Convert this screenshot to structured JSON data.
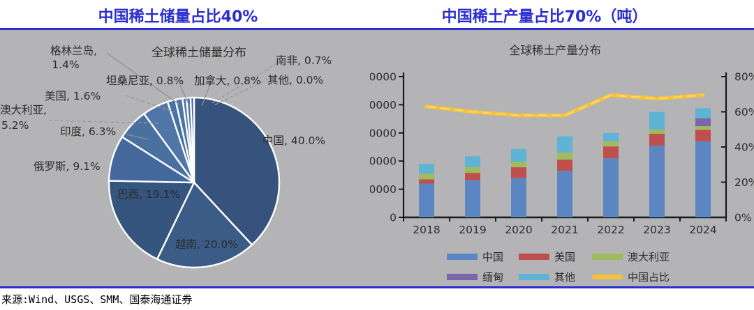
{
  "page": {
    "left_title": "中国稀土储量占比40%",
    "right_title": "中国稀土产量占比70%（吨）",
    "source": "来源:Wind、USGS、SMM、国泰海通证券",
    "accent_blue": "#2a2ed0",
    "panel_bg": "#b4b4b6"
  },
  "chart_data": [
    {
      "type": "pie",
      "title": "全球稀土储量分布",
      "unit": "%",
      "direction": "clockwise",
      "start_angle_deg": 0,
      "labels": [
        "中国",
        "越南",
        "巴西",
        "俄罗斯",
        "印度",
        "澳大利亚",
        "美国",
        "格林兰岛",
        "坦桑尼亚",
        "加拿大",
        "南非",
        "其他"
      ],
      "values": [
        40.0,
        20.0,
        19.1,
        9.1,
        6.3,
        5.2,
        1.6,
        1.4,
        0.8,
        0.8,
        0.7,
        0.0
      ],
      "colors": [
        "#35537c",
        "#3a5c86",
        "#35547e",
        "#44689b",
        "#49709f",
        "#4f76a7",
        "#4a71a3",
        "#4d74a6",
        "#5076a8",
        "#4a71a3",
        "#4d74a6",
        "#4a71a3"
      ],
      "callouts": [
        "格林兰岛,",
        "1.4%",
        "坦桑尼亚, 0.8%",
        "美国, 1.6%",
        "澳大利亚,",
        "5.2%",
        "印度, 6.3%",
        "俄罗斯, 9.1%",
        "巴西, 19.1%",
        "越南, 20.0%",
        "中国, 40.0%",
        "南非, 0.7%",
        "加拿大, 0.8%",
        "其他, 0.0%"
      ]
    },
    {
      "type": "bar",
      "subtype": "stacked-bar-with-line",
      "title": "全球稀土产量分布",
      "categories": [
        "2018",
        "2019",
        "2020",
        "2021",
        "2022",
        "2023",
        "2024"
      ],
      "series": [
        {
          "name": "中国",
          "color": "#5b86c2",
          "values": [
            120000,
            132000,
            140000,
            165000,
            210000,
            255000,
            270000
          ]
        },
        {
          "name": "美国",
          "color": "#bf4f4c",
          "values": [
            15000,
            26000,
            38000,
            40000,
            42000,
            42000,
            41000
          ]
        },
        {
          "name": "澳大利亚",
          "color": "#9fbb5d",
          "values": [
            20000,
            20000,
            20000,
            25000,
            18000,
            15000,
            13000
          ]
        },
        {
          "name": "缅甸",
          "color": "#7d66a8",
          "values": [
            0,
            0,
            0,
            0,
            0,
            0,
            28000
          ]
        },
        {
          "name": "其他",
          "color": "#5fb3d4",
          "values": [
            35000,
            39000,
            45000,
            58000,
            30000,
            63000,
            36000
          ]
        }
      ],
      "line": {
        "name": "中国占比",
        "color": "#f3c13d",
        "dash_color": "#ffd96b",
        "axis": "right",
        "values": [
          63,
          60,
          58,
          58,
          69.5,
          67.5,
          69.5
        ]
      },
      "axes": {
        "left": {
          "min": 0,
          "max": 500000,
          "step": 100000,
          "suffix": ""
        },
        "right": {
          "min": 0,
          "max": 80,
          "step": 20,
          "suffix": "%"
        }
      },
      "legend_position": "bottom",
      "grid": false
    }
  ]
}
